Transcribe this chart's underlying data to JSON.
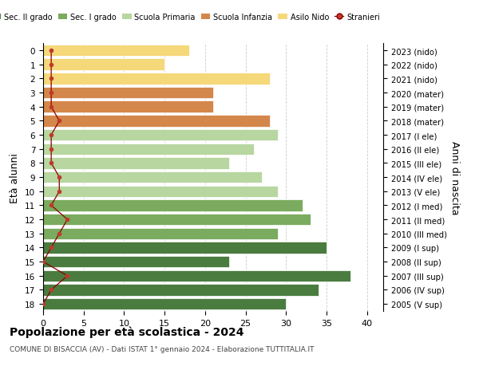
{
  "ages": [
    18,
    17,
    16,
    15,
    14,
    13,
    12,
    11,
    10,
    9,
    8,
    7,
    6,
    5,
    4,
    3,
    2,
    1,
    0
  ],
  "right_labels": [
    "2005 (V sup)",
    "2006 (IV sup)",
    "2007 (III sup)",
    "2008 (II sup)",
    "2009 (I sup)",
    "2010 (III med)",
    "2011 (II med)",
    "2012 (I med)",
    "2013 (V ele)",
    "2014 (IV ele)",
    "2015 (III ele)",
    "2016 (II ele)",
    "2017 (I ele)",
    "2018 (mater)",
    "2019 (mater)",
    "2020 (mater)",
    "2021 (nido)",
    "2022 (nido)",
    "2023 (nido)"
  ],
  "bar_values": [
    30,
    34,
    38,
    23,
    35,
    29,
    33,
    32,
    29,
    27,
    23,
    26,
    29,
    28,
    21,
    21,
    28,
    15,
    18
  ],
  "stranieri_values": [
    0,
    1,
    3,
    0,
    1,
    2,
    3,
    1,
    2,
    2,
    1,
    1,
    1,
    2,
    1,
    1,
    1,
    1,
    1
  ],
  "bar_colors": [
    "#4a7c3f",
    "#4a7c3f",
    "#4a7c3f",
    "#4a7c3f",
    "#4a7c3f",
    "#7aab5e",
    "#7aab5e",
    "#7aab5e",
    "#b8d6a0",
    "#b8d6a0",
    "#b8d6a0",
    "#b8d6a0",
    "#b8d6a0",
    "#d4874a",
    "#d4874a",
    "#d4874a",
    "#f5d87a",
    "#f5d87a",
    "#f5d87a"
  ],
  "legend_colors": [
    "#4a7c3f",
    "#7aab5e",
    "#b8d6a0",
    "#d4874a",
    "#f5d87a",
    "#c0392b"
  ],
  "legend_labels": [
    "Sec. II grado",
    "Sec. I grado",
    "Scuola Primaria",
    "Scuola Infanzia",
    "Asilo Nido",
    "Stranieri"
  ],
  "ylabel_left": "Età alunni",
  "ylabel_right": "Anni di nascita",
  "title": "Popolazione per età scolastica - 2024",
  "subtitle": "COMUNE DI BISACCIA (AV) - Dati ISTAT 1° gennaio 2024 - Elaborazione TUTTITALIA.IT",
  "xlim": [
    0,
    42
  ],
  "xticks": [
    0,
    5,
    10,
    15,
    20,
    25,
    30,
    35,
    40
  ],
  "bg_color": "#ffffff",
  "grid_color": "#cccccc"
}
